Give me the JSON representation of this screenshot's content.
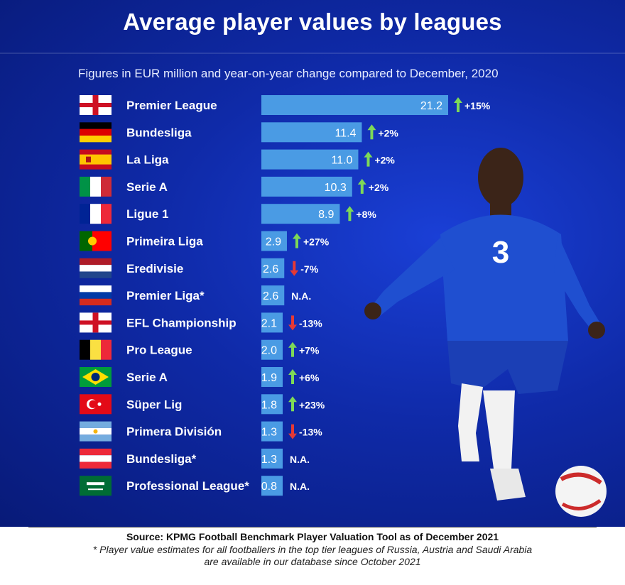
{
  "header": {
    "title": "Average player values by leagues",
    "subtitle": "Figures in EUR million and year-on-year change compared to December, 2020"
  },
  "colors": {
    "background": "#0f2aa8",
    "bar": "#4a9be4",
    "up_arrow": "#7ed957",
    "down_arrow": "#e53935"
  },
  "chart_data": {
    "type": "bar",
    "orientation": "horizontal",
    "unit": "EUR million",
    "rows": [
      {
        "league": "Premier League",
        "flag": "england",
        "value": 21.2,
        "value_label": "21.2",
        "change": "+15%",
        "direction": "up"
      },
      {
        "league": "Bundesliga",
        "flag": "germany",
        "value": 11.4,
        "value_label": "11.4",
        "change": "+2%",
        "direction": "up"
      },
      {
        "league": "La Liga",
        "flag": "spain",
        "value": 11.0,
        "value_label": "11.0",
        "change": "+2%",
        "direction": "up"
      },
      {
        "league": "Serie A",
        "flag": "italy",
        "value": 10.3,
        "value_label": "10.3",
        "change": "+2%",
        "direction": "up"
      },
      {
        "league": "Ligue 1",
        "flag": "france",
        "value": 8.9,
        "value_label": "8.9",
        "change": "+8%",
        "direction": "up"
      },
      {
        "league": "Primeira Liga",
        "flag": "portugal",
        "value": 2.9,
        "value_label": "2.9",
        "change": "+27%",
        "direction": "up"
      },
      {
        "league": "Eredivisie",
        "flag": "netherlands",
        "value": 2.6,
        "value_label": "2.6",
        "change": "-7%",
        "direction": "down"
      },
      {
        "league": "Premier Liga*",
        "flag": "russia",
        "value": 2.6,
        "value_label": "2.6",
        "change": "N.A.",
        "direction": "none"
      },
      {
        "league": "EFL Championship",
        "flag": "england",
        "value": 2.1,
        "value_label": "2.1",
        "change": "-13%",
        "direction": "down"
      },
      {
        "league": "Pro League",
        "flag": "belgium",
        "value": 2.0,
        "value_label": "2.0",
        "change": "+7%",
        "direction": "up"
      },
      {
        "league": "Serie A",
        "flag": "brazil",
        "value": 1.9,
        "value_label": "1.9",
        "change": "+6%",
        "direction": "up"
      },
      {
        "league": "Süper Lig",
        "flag": "turkey",
        "value": 1.8,
        "value_label": "1.8",
        "change": "+23%",
        "direction": "up"
      },
      {
        "league": "Primera División",
        "flag": "argentina",
        "value": 1.3,
        "value_label": "1.3",
        "change": "-13%",
        "direction": "down"
      },
      {
        "league": "Bundesliga*",
        "flag": "austria",
        "value": 1.3,
        "value_label": "1.3",
        "change": "N.A.",
        "direction": "none"
      },
      {
        "league": "Professional League*",
        "flag": "saudi-arabia",
        "value": 0.8,
        "value_label": "0.8",
        "change": "N.A.",
        "direction": "none"
      }
    ]
  },
  "footer": {
    "source": "Source: KPMG Football Benchmark Player Valuation Tool as of December 2021",
    "note_line1": "* Player value estimates for all footballers in the top tier leagues of Russia, Austria and Saudi Arabia",
    "note_line2": "are available in our database since October 2021"
  }
}
